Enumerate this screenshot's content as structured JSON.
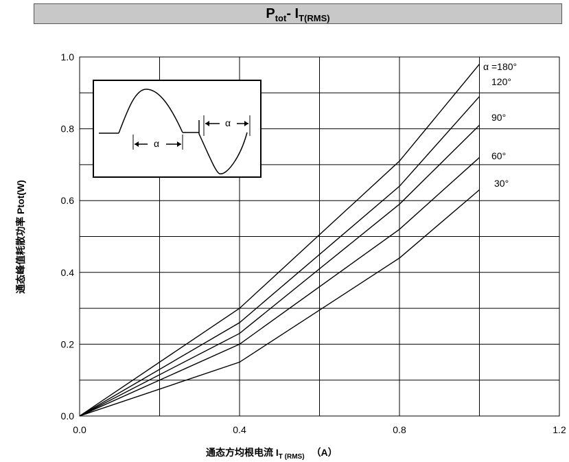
{
  "title": {
    "main": "P",
    "main_sub": "tot",
    "dash": "- I",
    "i_sub": "T(RMS)"
  },
  "chart_data": {
    "type": "line",
    "title": "Ptot- IT(RMS)",
    "xlabel": {
      "text": "通态方均根电流 I",
      "sub": "T (RMS)",
      "unit": "（A）"
    },
    "ylabel": "通态峰值耗散功率 Ptot(W)",
    "xlim": [
      0,
      1.2
    ],
    "ylim": [
      0,
      1.0
    ],
    "x_ticks": [
      "0.0",
      "0.4",
      "0.8",
      "1.2"
    ],
    "y_ticks": [
      "0.0",
      "0.2",
      "0.4",
      "0.6",
      "0.8",
      "1.0"
    ],
    "grid": true,
    "series": [
      {
        "name": "α =180°",
        "x": [
          0,
          0.4,
          0.8,
          1.0
        ],
        "y": [
          0,
          0.3,
          0.71,
          0.98
        ]
      },
      {
        "name": "120°",
        "x": [
          0,
          0.4,
          0.8,
          1.0
        ],
        "y": [
          0,
          0.26,
          0.64,
          0.89
        ]
      },
      {
        "name": "90°",
        "x": [
          0,
          0.4,
          0.8,
          1.0
        ],
        "y": [
          0,
          0.23,
          0.59,
          0.81
        ]
      },
      {
        "name": "60°",
        "x": [
          0,
          0.4,
          0.8,
          1.0
        ],
        "y": [
          0,
          0.2,
          0.52,
          0.72
        ]
      },
      {
        "name": "30°",
        "x": [
          0,
          0.4,
          0.8,
          1.0
        ],
        "y": [
          0,
          0.15,
          0.44,
          0.63
        ]
      }
    ],
    "inset": {
      "labels": [
        "α",
        "α"
      ]
    }
  }
}
